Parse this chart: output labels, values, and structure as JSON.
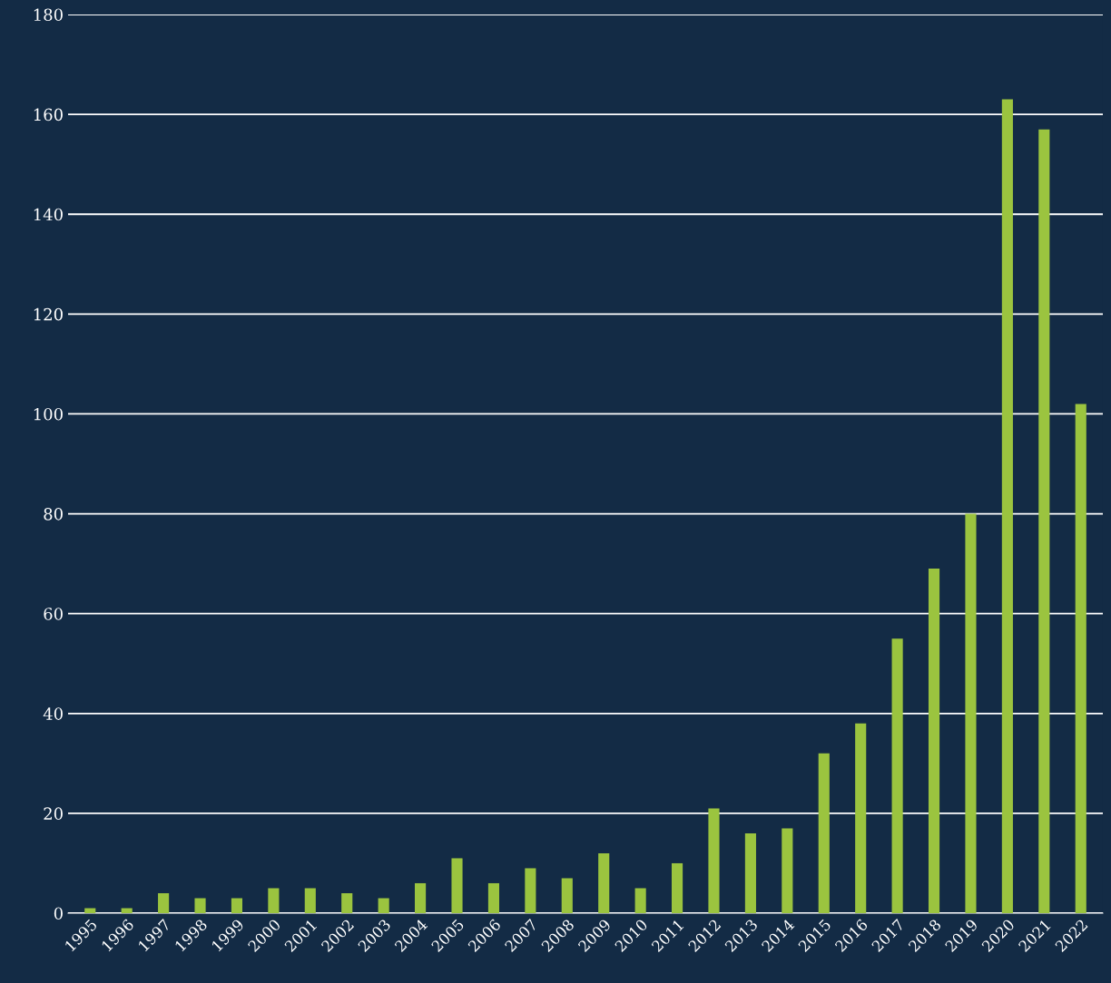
{
  "chart_data": {
    "type": "bar",
    "categories": [
      "1995",
      "1996",
      "1997",
      "1998",
      "1999",
      "2000",
      "2001",
      "2002",
      "2003",
      "2004",
      "2005",
      "2006",
      "2007",
      "2008",
      "2009",
      "2010",
      "2011",
      "2012",
      "2013",
      "2014",
      "2015",
      "2016",
      "2017",
      "2018",
      "2019",
      "2020",
      "2021",
      "2022"
    ],
    "values": [
      1,
      1,
      4,
      3,
      3,
      5,
      5,
      4,
      3,
      6,
      11,
      6,
      9,
      7,
      12,
      5,
      10,
      21,
      16,
      17,
      32,
      38,
      55,
      69,
      80,
      163,
      157,
      102
    ],
    "color": "#9bc43f",
    "ylim": [
      0,
      180
    ],
    "yticks": [
      0,
      20,
      40,
      60,
      80,
      100,
      120,
      140,
      160,
      180
    ],
    "grid": "y",
    "legend": false
  }
}
